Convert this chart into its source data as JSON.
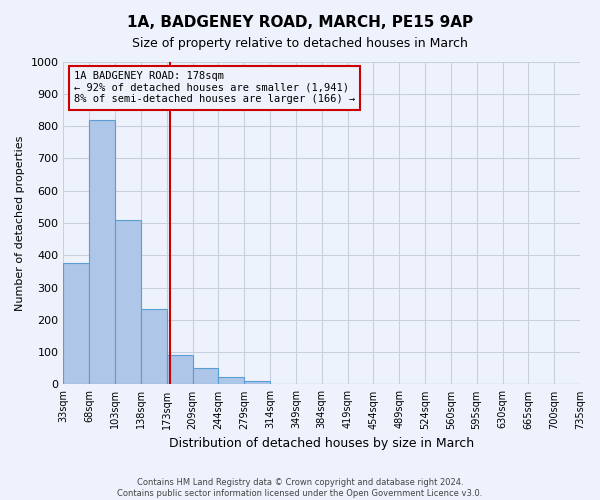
{
  "title": "1A, BADGENEY ROAD, MARCH, PE15 9AP",
  "subtitle": "Size of property relative to detached houses in March",
  "xlabel": "Distribution of detached houses by size in March",
  "ylabel": "Number of detached properties",
  "bin_labels": [
    "33sqm",
    "68sqm",
    "103sqm",
    "138sqm",
    "173sqm",
    "209sqm",
    "244sqm",
    "279sqm",
    "314sqm",
    "349sqm",
    "384sqm",
    "419sqm",
    "454sqm",
    "489sqm",
    "524sqm",
    "560sqm",
    "595sqm",
    "630sqm",
    "665sqm",
    "700sqm",
    "735sqm"
  ],
  "bar_values": [
    375,
    820,
    510,
    235,
    90,
    52,
    22,
    12,
    0,
    0,
    0,
    0,
    0,
    0,
    0,
    0,
    0,
    0,
    0,
    0
  ],
  "bar_color": "#aec6e8",
  "bar_edge_color": "#5a9fd4",
  "ylim": [
    0,
    1000
  ],
  "yticks": [
    0,
    100,
    200,
    300,
    400,
    500,
    600,
    700,
    800,
    900,
    1000
  ],
  "property_line_x": 4.143,
  "property_line_color": "#cc0000",
  "annotation_line1": "1A BADGENEY ROAD: 178sqm",
  "annotation_line2": "← 92% of detached houses are smaller (1,941)",
  "annotation_line3": "8% of semi-detached houses are larger (166) →",
  "annotation_box_color": "#cc0000",
  "background_color": "#eef2fc",
  "grid_color": "#c8d0e0",
  "footnote_line1": "Contains HM Land Registry data © Crown copyright and database right 2024.",
  "footnote_line2": "Contains public sector information licensed under the Open Government Licence v3.0."
}
